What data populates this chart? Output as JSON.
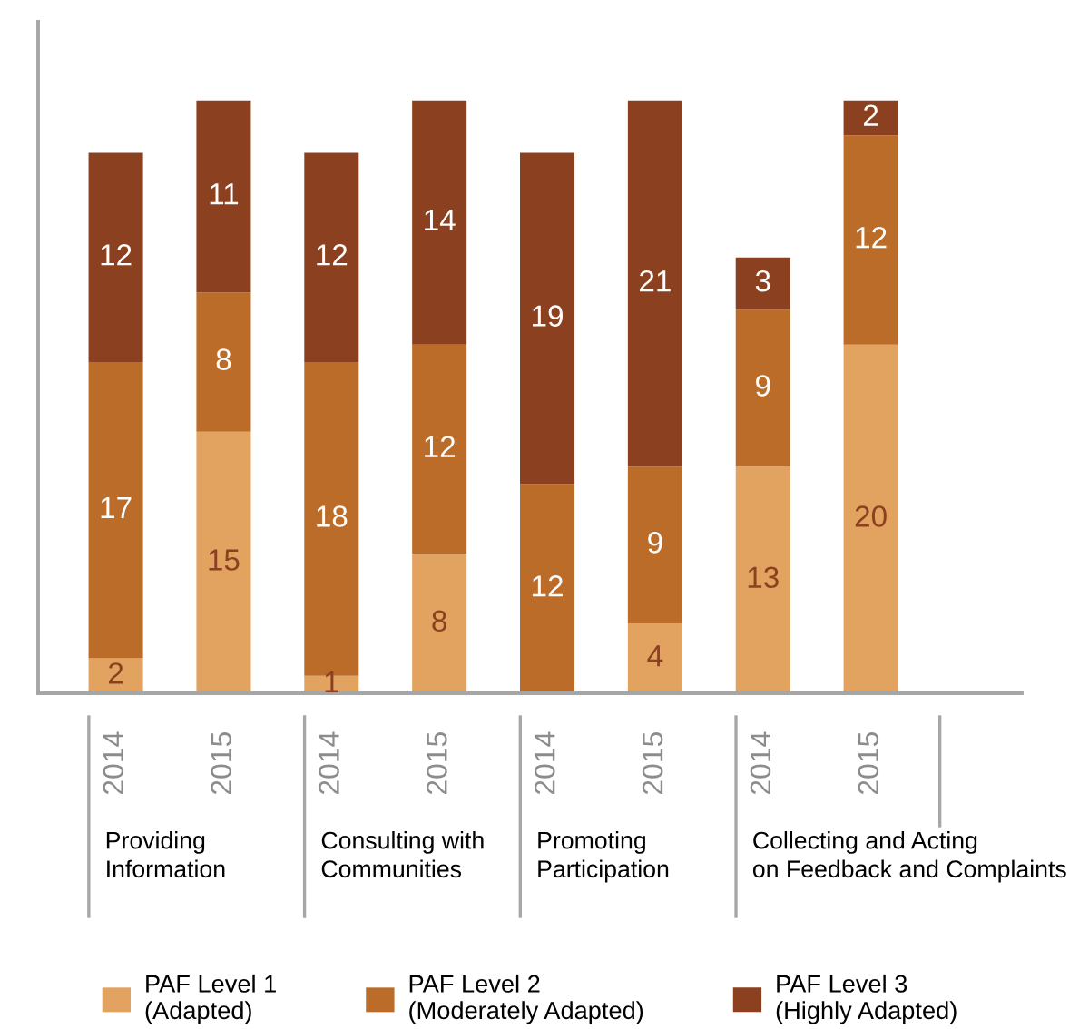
{
  "chart_data": {
    "type": "bar",
    "stacked": true,
    "categories": [
      "2014",
      "2015",
      "2014",
      "2015",
      "2014",
      "2015",
      "2014",
      "2015"
    ],
    "series": [
      {
        "name": "PAF Level 1\n(Adapted)",
        "color": "#e2a260",
        "values": [
          2,
          15,
          1,
          8,
          null,
          4,
          13,
          20
        ]
      },
      {
        "name": "PAF Level 2\n(Moderately Adapted)",
        "color": "#bb6c28",
        "values": [
          17,
          8,
          18,
          12,
          12,
          9,
          9,
          12
        ]
      },
      {
        "name": "PAF Level 3\n(Highly Adapted)",
        "color": "#8b4120",
        "values": [
          12,
          11,
          12,
          14,
          19,
          21,
          3,
          2
        ]
      }
    ],
    "data_labels": true,
    "legend": "bottom",
    "tick_labels": "x",
    "annotations": [
      "Providing\nInformation",
      "Consulting with\nCommunities",
      "Promoting\nParticipation",
      "Collecting and Acting\non Feedback and Complaints"
    ]
  }
}
